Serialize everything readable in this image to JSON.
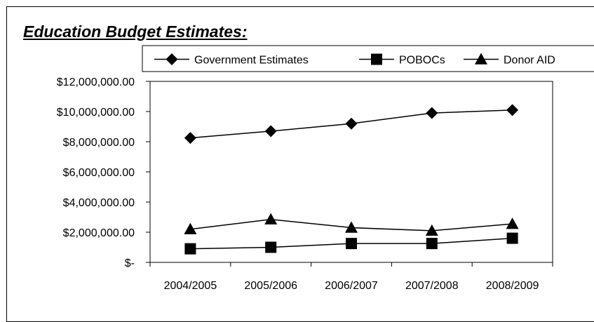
{
  "chart_data": {
    "type": "line",
    "title": "Education Budget Estimates:",
    "xlabel": "",
    "ylabel": "",
    "categories": [
      "2004/2005",
      "2005/2006",
      "2006/2007",
      "2007/2008",
      "2008/2009"
    ],
    "ylim": [
      0,
      12000000
    ],
    "yticks": [
      0,
      2000000,
      4000000,
      6000000,
      8000000,
      10000000,
      12000000
    ],
    "ytick_labels": [
      "$-",
      "$2,000,000.00",
      "$4,000,000.00",
      "$6,000,000.00",
      "$8,000,000.00",
      "$10,000,000.00",
      "$12,000,000.00"
    ],
    "grid": false,
    "legend_position": "top",
    "series": [
      {
        "name": "Government Estimates",
        "marker": "diamond",
        "values": [
          8250000,
          8700000,
          9200000,
          9900000,
          10100000
        ]
      },
      {
        "name": "POBOCs",
        "marker": "square",
        "values": [
          900000,
          1000000,
          1250000,
          1250000,
          1600000
        ]
      },
      {
        "name": "Donor AID",
        "marker": "triangle",
        "values": [
          2200000,
          2850000,
          2300000,
          2100000,
          2550000
        ]
      }
    ],
    "line_color": "#000000"
  }
}
